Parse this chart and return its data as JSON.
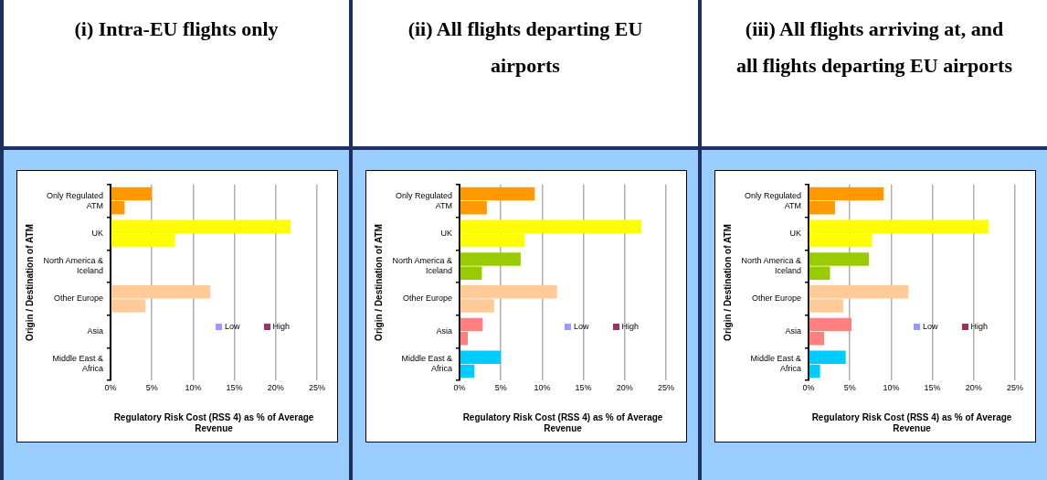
{
  "chart_data": [
    {
      "type": "bar",
      "orientation": "horizontal",
      "title": "(i) Intra-EU flights only",
      "xlabel": "Regulatory Risk Cost (RSS 4) as % of Average Revenue",
      "ylabel": "Origin / Destination of ATM",
      "categories": [
        "Only Regulated ATM",
        "UK",
        "North America & Iceland",
        "Other Europe",
        "Asia",
        "Middle East & Africa"
      ],
      "series": [
        {
          "name": "High",
          "color": "#993366",
          "colors": [
            "#ff9900",
            "#ffff00",
            "#99cc00",
            "#ffcc99",
            "#ff8080",
            "#00ccff"
          ],
          "values": [
            5,
            21.8,
            null,
            12.1,
            null,
            null
          ]
        },
        {
          "name": "Low",
          "color": "#9999ff",
          "colors": [
            "#ff9900",
            "#ffff00",
            "#99cc00",
            "#ffcc99",
            "#ff8080",
            "#00ccff"
          ],
          "values": [
            1.7,
            7.8,
            null,
            4.2,
            null,
            null
          ]
        }
      ],
      "xlim": [
        0,
        25
      ],
      "xticks": [
        {
          "value": 0,
          "label": "0%"
        },
        {
          "value": 5,
          "label": "5%"
        },
        {
          "value": 10,
          "label": "10%"
        },
        {
          "value": 15,
          "label": "15%"
        },
        {
          "value": 20,
          "label": "20%"
        },
        {
          "value": 25,
          "label": "25%"
        }
      ],
      "grid": "x",
      "legend": "bottom right"
    },
    {
      "type": "bar",
      "orientation": "horizontal",
      "title": "(ii) All flights departing EU airports",
      "xlabel": "Regulatory Risk Cost (RSS 4) as % of Average Revenue",
      "ylabel": "Origin / Destination of ATM",
      "categories": [
        "Only Regulated ATM",
        "UK",
        "North America & Iceland",
        "Other Europe",
        "Asia",
        "Middle East & Africa"
      ],
      "series": [
        {
          "name": "High",
          "color": "#993366",
          "colors": [
            "#ff9900",
            "#ffff00",
            "#99cc00",
            "#ffcc99",
            "#ff8080",
            "#00ccff"
          ],
          "values": [
            9.1,
            22,
            7.4,
            11.8,
            2.8,
            5
          ]
        },
        {
          "name": "Low",
          "color": "#9999ff",
          "colors": [
            "#ff9900",
            "#ffff00",
            "#99cc00",
            "#ffcc99",
            "#ff8080",
            "#00ccff"
          ],
          "values": [
            3.3,
            7.9,
            2.7,
            4.2,
            1,
            1.8
          ]
        }
      ],
      "xlim": [
        0,
        25
      ],
      "xticks": [
        {
          "value": 0,
          "label": "0%"
        },
        {
          "value": 5,
          "label": "5%"
        },
        {
          "value": 10,
          "label": "10%"
        },
        {
          "value": 15,
          "label": "15%"
        },
        {
          "value": 20,
          "label": "20%"
        },
        {
          "value": 25,
          "label": "25%"
        }
      ],
      "grid": "x",
      "legend": "bottom right"
    },
    {
      "type": "bar",
      "orientation": "horizontal",
      "title": "(iii) All flights arriving at, and all flights departing EU airports",
      "xlabel": "Regulatory Risk Cost (RSS 4) as % of Average Revenue",
      "ylabel": "Origin / Destination of ATM",
      "categories": [
        "Only Regulated ATM",
        "UK",
        "North America & Iceland",
        "Other Europe",
        "Asia",
        "Middle East & Africa"
      ],
      "series": [
        {
          "name": "High",
          "color": "#993366",
          "colors": [
            "#ff9900",
            "#ffff00",
            "#99cc00",
            "#ffcc99",
            "#ff8080",
            "#00ccff"
          ],
          "values": [
            9.1,
            21.8,
            7.3,
            12.1,
            5.2,
            4.5
          ]
        },
        {
          "name": "Low",
          "color": "#9999ff",
          "colors": [
            "#ff9900",
            "#ffff00",
            "#99cc00",
            "#ffcc99",
            "#ff8080",
            "#00ccff"
          ],
          "values": [
            3.2,
            7.7,
            2.6,
            4.2,
            1.9,
            1.4
          ]
        }
      ],
      "xlim": [
        0,
        25
      ],
      "xticks": [
        {
          "value": 0,
          "label": "0%"
        },
        {
          "value": 5,
          "label": "5%"
        },
        {
          "value": 10,
          "label": "10%"
        },
        {
          "value": 15,
          "label": "15%"
        },
        {
          "value": 20,
          "label": "20%"
        },
        {
          "value": 25,
          "label": "25%"
        }
      ],
      "grid": "x",
      "legend": "bottom right"
    }
  ]
}
